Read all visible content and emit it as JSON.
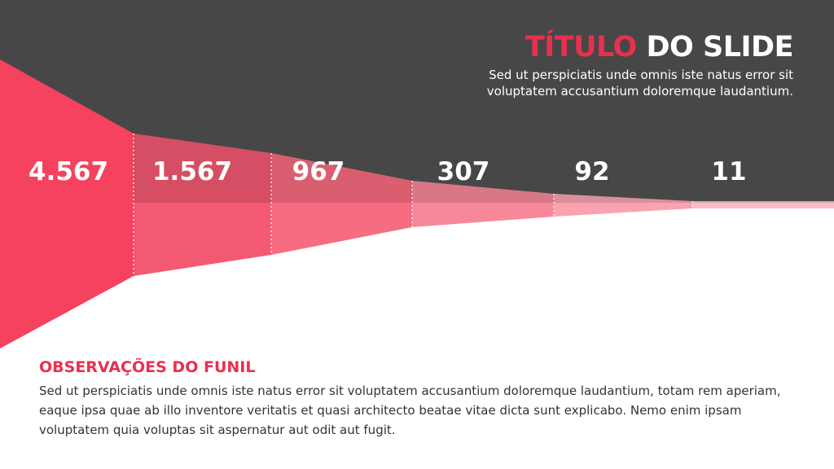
{
  "header": {
    "title_accent": "TÍTULO",
    "title_rest": "DO SLIDE",
    "subtitle": "Sed ut perspiciatis unde omnis iste natus error sit voluptatem accusantium doloremque laudantium."
  },
  "funnel": {
    "stages": [
      {
        "value": "4.567"
      },
      {
        "value": "1.567"
      },
      {
        "value": "967"
      },
      {
        "value": "307"
      },
      {
        "value": "92"
      },
      {
        "value": "11"
      }
    ]
  },
  "notes": {
    "heading": "OBSERVAÇÕES DO FUNIL",
    "body": "Sed ut perspiciatis unde omnis iste natus error sit voluptatem accusantium doloremque laudantium, totam rem aperiam, eaque ipsa quae ab illo inventore veritatis et quasi architecto beatae vitae dicta sunt explicabo. Nemo enim ipsam voluptatem quia voluptas sit aspernatur aut odit aut fugit."
  },
  "colors": {
    "dark_background": "#474747",
    "accent": "#e8304f",
    "funnel_shades": [
      "#f4425f",
      "#f35971",
      "#f66c80",
      "#f7889a",
      "#f9a3b1",
      "#fbbcc5"
    ]
  }
}
